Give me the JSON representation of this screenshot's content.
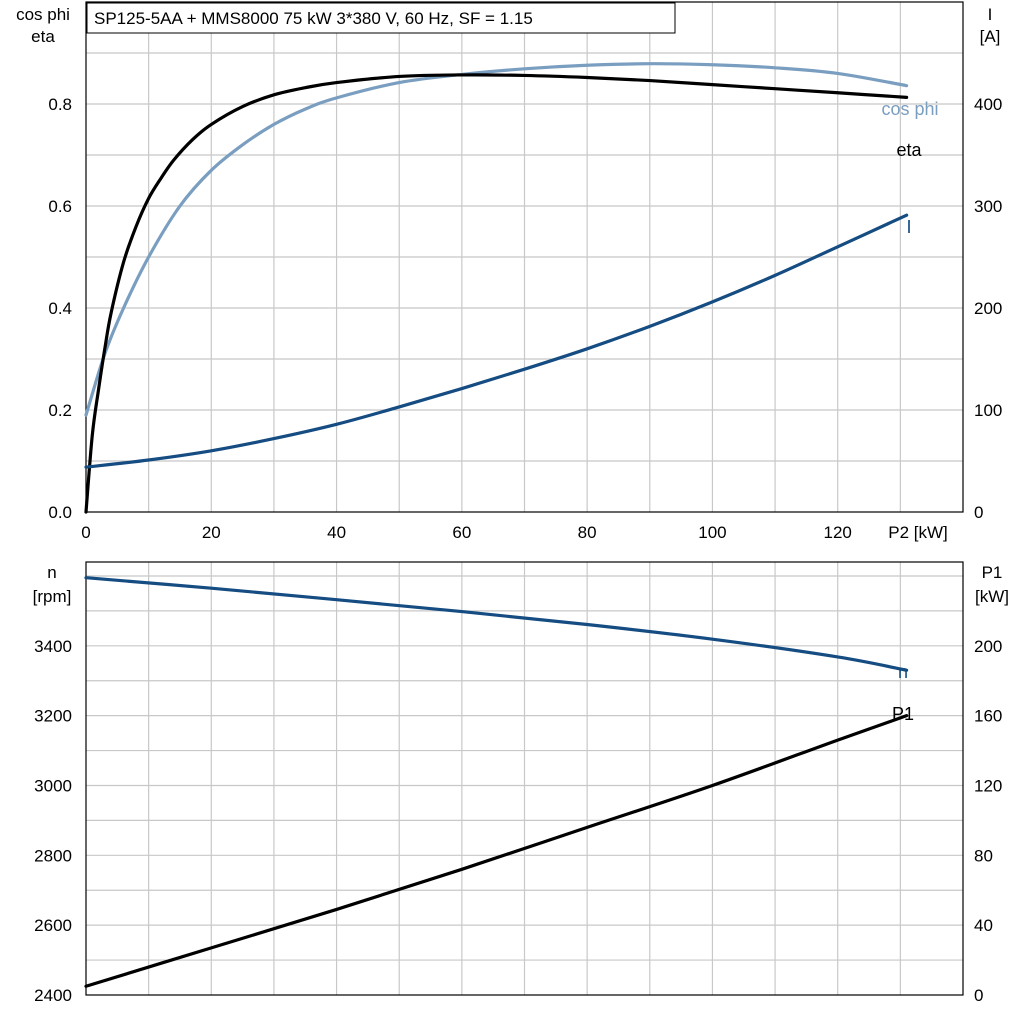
{
  "colors": {
    "eta": "#000000",
    "cosphi": "#7a9ec0",
    "current": "#154c82",
    "speed": "#154c82",
    "p1": "#000000"
  },
  "chart_data": [
    {
      "type": "line",
      "title": "SP125-5AA + MMS8000   75 kW   3*380 V, 60 Hz, SF = 1.15",
      "xlabel": "P2 [kW]",
      "ylabel_left": [
        "cos phi",
        "eta"
      ],
      "ylabel_right": [
        "I",
        "[A]"
      ],
      "xlim": [
        0,
        140
      ],
      "ylim_left": [
        0,
        1.0
      ],
      "ylim_right": [
        0,
        500
      ],
      "x_ticks": [
        "0",
        "20",
        "40",
        "60",
        "80",
        "100",
        "120"
      ],
      "y_ticks_left": [
        "0.0",
        "0.2",
        "0.4",
        "0.6",
        "0.8"
      ],
      "y_ticks_right": [
        "0",
        "100",
        "200",
        "300",
        "400"
      ],
      "grid": true,
      "series": [
        {
          "name": "eta",
          "axis": "left",
          "x": [
            0,
            1,
            2,
            3,
            4,
            6,
            8,
            10,
            12,
            14,
            17,
            20,
            25,
            30,
            35,
            40,
            50,
            60,
            70,
            80,
            90,
            100,
            110,
            120,
            131
          ],
          "y": [
            0.0,
            0.15,
            0.24,
            0.32,
            0.39,
            0.49,
            0.56,
            0.615,
            0.655,
            0.69,
            0.73,
            0.76,
            0.795,
            0.818,
            0.832,
            0.842,
            0.854,
            0.857,
            0.856,
            0.852,
            0.846,
            0.838,
            0.83,
            0.822,
            0.813
          ]
        },
        {
          "name": "cos phi",
          "axis": "left",
          "x": [
            0,
            3,
            6,
            10,
            15,
            20,
            25,
            30,
            35,
            40,
            50,
            60,
            70,
            80,
            90,
            100,
            110,
            120,
            131
          ],
          "y": [
            0.19,
            0.31,
            0.4,
            0.5,
            0.6,
            0.67,
            0.72,
            0.76,
            0.79,
            0.812,
            0.842,
            0.858,
            0.869,
            0.876,
            0.879,
            0.877,
            0.871,
            0.86,
            0.836
          ]
        },
        {
          "name": "I",
          "axis": "right",
          "x": [
            0,
            10,
            20,
            30,
            40,
            50,
            60,
            70,
            80,
            90,
            100,
            110,
            120,
            131
          ],
          "y": [
            44,
            51,
            60,
            72,
            86,
            103,
            121,
            140,
            160,
            182,
            206,
            232,
            260,
            291
          ]
        }
      ]
    },
    {
      "type": "line",
      "xlabel": "",
      "ylabel_left": [
        "n",
        "[rpm]"
      ],
      "ylabel_right": [
        "P1",
        "[kW]"
      ],
      "xlim": [
        0,
        140
      ],
      "ylim_left": [
        2400,
        3640
      ],
      "ylim_right": [
        0,
        248
      ],
      "y_ticks_left": [
        "2400",
        "2600",
        "2800",
        "3000",
        "3200",
        "3400"
      ],
      "y_ticks_right": [
        "0",
        "40",
        "80",
        "120",
        "160",
        "200"
      ],
      "grid": true,
      "series": [
        {
          "name": "n",
          "axis": "left",
          "x": [
            0,
            20,
            40,
            60,
            80,
            100,
            120,
            131
          ],
          "y": [
            3595,
            3565,
            3532,
            3498,
            3461,
            3419,
            3368,
            3330
          ]
        },
        {
          "name": "P1",
          "axis": "right",
          "x": [
            0,
            20,
            40,
            60,
            80,
            100,
            120,
            131
          ],
          "y": [
            5,
            27,
            49,
            72,
            96,
            120,
            146,
            160
          ]
        }
      ]
    }
  ]
}
